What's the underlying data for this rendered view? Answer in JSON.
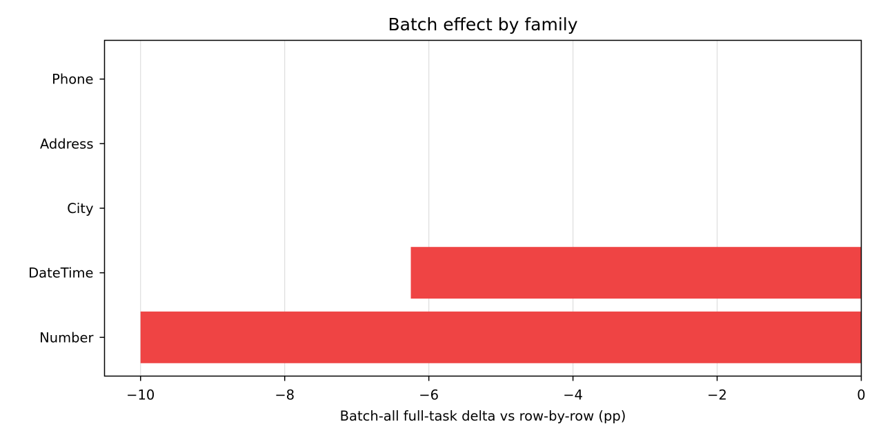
{
  "chart_data": {
    "type": "bar",
    "orientation": "horizontal",
    "title": "Batch effect by family",
    "xlabel": "Batch-all full-task delta vs row-by-row (pp)",
    "ylabel": "",
    "categories": [
      "Number",
      "DateTime",
      "City",
      "Address",
      "Phone"
    ],
    "values": [
      -10.0,
      -6.25,
      0,
      0,
      0
    ],
    "xlim": [
      -10.5,
      0
    ],
    "xticks": [
      -10,
      -8,
      -6,
      -4,
      -2,
      0
    ],
    "xtick_labels": [
      "−10",
      "−8",
      "−6",
      "−4",
      "−2",
      "0"
    ],
    "grid": "vertical",
    "legend": "none",
    "bar_color": "#ef4444"
  }
}
